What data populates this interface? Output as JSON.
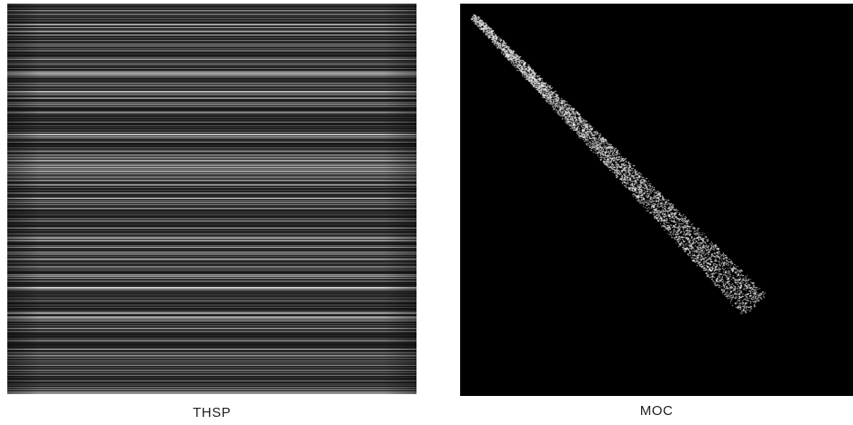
{
  "panels": [
    {
      "caption": "THSP"
    },
    {
      "caption": "MOC"
    }
  ]
}
